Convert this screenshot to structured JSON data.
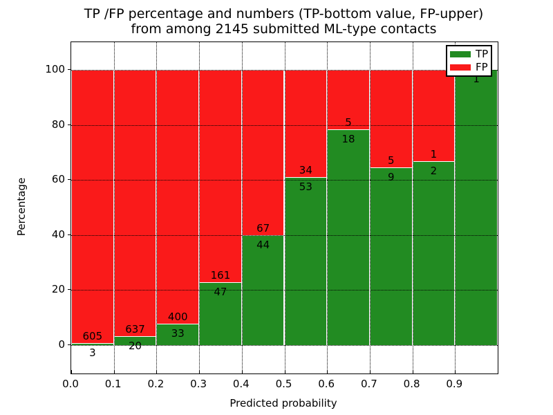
{
  "chart_data": {
    "type": "bar",
    "stacked": true,
    "normalized_to_percent": true,
    "title_lines": [
      "TP /FP percentage and numbers (TP-bottom value, FP-upper)",
      "from among 2145 submitted ML-type contacts"
    ],
    "xlabel": "Predicted probability",
    "ylabel": "Percentage",
    "total_contacts": 2145,
    "bin_edges": [
      0.0,
      0.1,
      0.2,
      0.3,
      0.4,
      0.5,
      0.6,
      0.7,
      0.8,
      0.9,
      1.0
    ],
    "x_tick_labels": [
      "0.0",
      "0.1",
      "0.2",
      "0.3",
      "0.4",
      "0.5",
      "0.6",
      "0.7",
      "0.8",
      "0.9"
    ],
    "y_tick_labels": [
      "0",
      "20",
      "40",
      "60",
      "80",
      "100"
    ],
    "y_tick_values": [
      0,
      20,
      40,
      60,
      80,
      100
    ],
    "xlim": [
      0.0,
      1.0
    ],
    "ylim": [
      -10.3,
      110.1
    ],
    "grid_style": "dotted",
    "series": [
      {
        "name": "TP",
        "color": "#228b22",
        "values": [
          3,
          20,
          33,
          47,
          44,
          53,
          18,
          9,
          2,
          1
        ]
      },
      {
        "name": "FP",
        "color": "#fa1a1a",
        "values": [
          605,
          637,
          400,
          161,
          67,
          34,
          5,
          5,
          1,
          0
        ]
      }
    ],
    "tp_labels": [
      "3",
      "20",
      "33",
      "47",
      "44",
      "53",
      "18",
      "9",
      "2",
      "1"
    ],
    "fp_labels": [
      "605",
      "637",
      "400",
      "161",
      "67",
      "34",
      "5",
      "5",
      "1",
      ""
    ],
    "legend": {
      "position": "upper right",
      "entries": [
        {
          "label": "TP",
          "color": "#228b22"
        },
        {
          "label": "FP",
          "color": "#fa1a1a"
        }
      ]
    }
  }
}
